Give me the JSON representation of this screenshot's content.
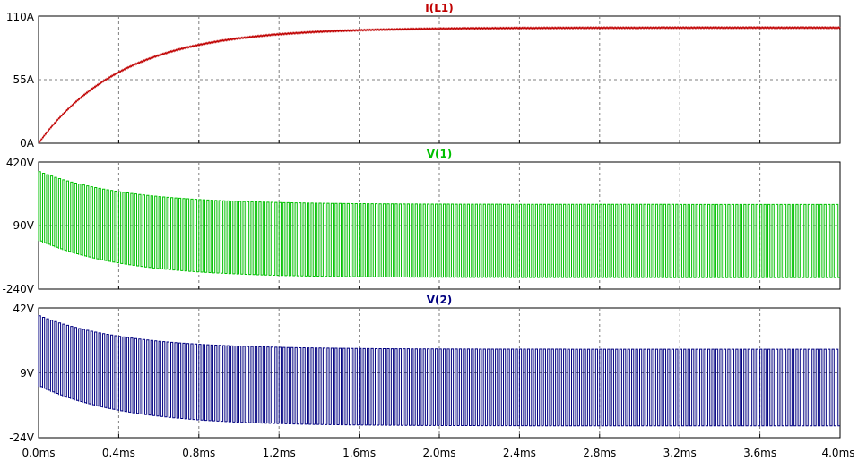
{
  "chart_data": [
    {
      "type": "line",
      "title": "I(L1)",
      "color": "#c00000",
      "unit": "A",
      "xlim": [
        0.0,
        4.0
      ],
      "ylim": [
        0,
        110
      ],
      "yticks": [
        "110A",
        "55A",
        "0A"
      ],
      "waveform": {
        "kind": "exponential-rise",
        "final": 100,
        "tau_ms": 0.42,
        "ripple": 0.6
      },
      "x_ticks": [
        "0.0ms",
        "0.4ms",
        "0.8ms",
        "1.2ms",
        "1.6ms",
        "2.0ms",
        "2.4ms",
        "2.8ms",
        "3.2ms",
        "3.6ms",
        "4.0ms"
      ]
    },
    {
      "type": "line",
      "title": "V(1)",
      "color": "#00c000",
      "unit": "V",
      "xlim": [
        0.0,
        4.0
      ],
      "ylim": [
        -240,
        420
      ],
      "yticks": [
        "420V",
        "90V",
        "-240V"
      ],
      "waveform": {
        "kind": "square",
        "period_ms": 0.02,
        "high_start": 370,
        "high_final": 200,
        "low_start": 10,
        "low_final": -180,
        "tau_ms": 0.42
      },
      "x_ticks": [
        "0.0ms",
        "0.4ms",
        "0.8ms",
        "1.2ms",
        "1.6ms",
        "2.0ms",
        "2.4ms",
        "2.8ms",
        "3.2ms",
        "3.6ms",
        "4.0ms"
      ]
    },
    {
      "type": "line",
      "title": "V(2)",
      "color": "#000080",
      "unit": "V",
      "xlim": [
        0.0,
        4.0
      ],
      "ylim": [
        -24,
        42
      ],
      "yticks": [
        "42V",
        "9V",
        "-24V"
      ],
      "waveform": {
        "kind": "square",
        "period_ms": 0.02,
        "high_start": 38,
        "high_final": 21,
        "low_start": 2,
        "low_final": -18,
        "tau_ms": 0.42
      },
      "x_ticks": [
        "0.0ms",
        "0.4ms",
        "0.8ms",
        "1.2ms",
        "1.6ms",
        "2.0ms",
        "2.4ms",
        "2.8ms",
        "3.2ms",
        "3.6ms",
        "4.0ms"
      ]
    }
  ]
}
